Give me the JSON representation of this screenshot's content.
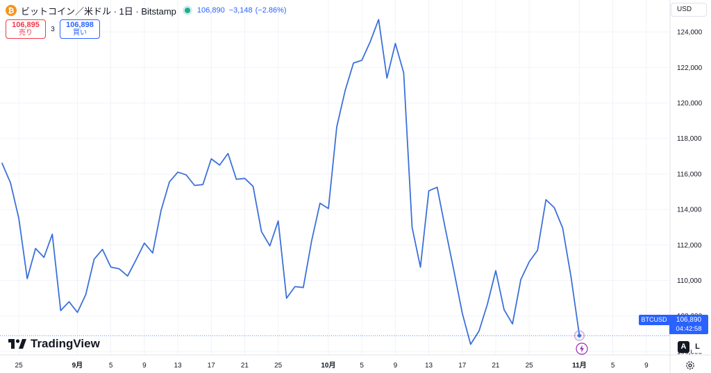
{
  "header": {
    "coin_icon": "bitcoin-icon",
    "coin_glyph": "₿",
    "title": "ビットコイン／米ドル · 1日 · Bitstamp",
    "last_price": "106,890",
    "change": "−3,148",
    "change_pct": "(−2.86%)",
    "live_color": "#22ab94"
  },
  "trade": {
    "sell_price": "106,895",
    "sell_label": "売り",
    "spread": "3",
    "buy_price": "106,898",
    "buy_label": "買い"
  },
  "currency": "USD",
  "logo_text": "TradingView",
  "price_label": {
    "symbol": "BTCUSD",
    "price": "106,890",
    "countdown": "04:42:58"
  },
  "scale_buttons": {
    "auto": "A",
    "log": "L"
  },
  "colors": {
    "line": "#3b70d9",
    "accent": "#2962ff",
    "sell": "#f23645",
    "grid": "#f0f3fa",
    "axis_text": "#131722"
  },
  "chart_data": {
    "type": "line",
    "series": [
      {
        "values": [
          116600,
          115500,
          113500,
          110100,
          111800,
          111300,
          112600,
          108300,
          108800,
          108200,
          109200,
          111200,
          111750,
          110750,
          110650,
          110250,
          111150,
          112100,
          111550,
          113950,
          115550,
          116100,
          115950,
          115350,
          115400,
          116850,
          116500,
          117150,
          115700,
          115750,
          115300,
          112750,
          111950,
          113350,
          109000,
          109650,
          109600,
          112250,
          114350,
          114050,
          118650,
          120700,
          122250,
          122400,
          123450,
          124700,
          121400,
          123350,
          121700,
          113000,
          110750,
          115050,
          115250,
          112850,
          110550,
          108150,
          106400,
          107150,
          108650,
          110550,
          108350,
          107550,
          110050,
          111050,
          111700,
          114550,
          114100,
          112950,
          110200,
          106890
        ]
      }
    ],
    "x_axis_labels": [
      {
        "label": "25",
        "index": 2
      },
      {
        "label": "9月",
        "index": 9
      },
      {
        "label": "5",
        "index": 13
      },
      {
        "label": "9",
        "index": 17
      },
      {
        "label": "13",
        "index": 21
      },
      {
        "label": "17",
        "index": 25
      },
      {
        "label": "21",
        "index": 29
      },
      {
        "label": "25",
        "index": 33
      },
      {
        "label": "10月",
        "index": 39
      },
      {
        "label": "5",
        "index": 43
      },
      {
        "label": "9",
        "index": 47
      },
      {
        "label": "13",
        "index": 51
      },
      {
        "label": "17",
        "index": 55
      },
      {
        "label": "21",
        "index": 59
      },
      {
        "label": "25",
        "index": 63
      },
      {
        "label": "11月",
        "index": 69
      },
      {
        "label": "5",
        "index": 73
      },
      {
        "label": "9",
        "index": 77
      }
    ],
    "y_ticks": [
      106000,
      108000,
      110000,
      112000,
      114000,
      116000,
      118000,
      120000,
      122000,
      124000
    ],
    "y_range": [
      105800,
      125800
    ],
    "last_value": 106890,
    "grid": true
  }
}
